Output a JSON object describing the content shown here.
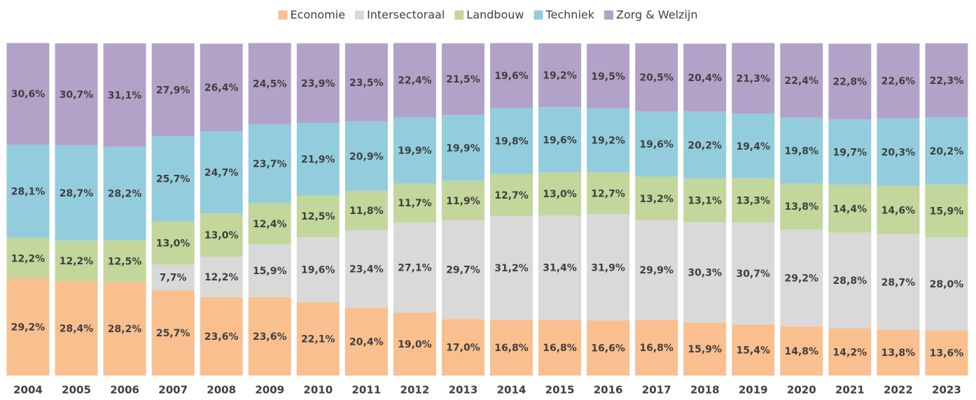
{
  "chart_data": {
    "type": "stacked_bar",
    "categories": [
      "2004",
      "2005",
      "2006",
      "2007",
      "2008",
      "2009",
      "2010",
      "2011",
      "2012",
      "2013",
      "2014",
      "2015",
      "2016",
      "2017",
      "2018",
      "2019",
      "2020",
      "2021",
      "2022",
      "2023"
    ],
    "ylim": [
      0,
      100
    ],
    "legend": "top",
    "series": [
      {
        "name": "Economie",
        "color": "#f9bf8f",
        "values": [
          29.2,
          28.4,
          28.2,
          25.7,
          23.6,
          23.6,
          22.1,
          20.4,
          19.0,
          17.0,
          16.8,
          16.8,
          16.6,
          16.8,
          15.9,
          15.4,
          14.8,
          14.2,
          13.8,
          13.6
        ],
        "value_labels": [
          "29,2%",
          "28,4%",
          "28,2%",
          "25,7%",
          "23,6%",
          "23,6%",
          "22,1%",
          "20,4%",
          "19,0%",
          "17,0%",
          "16,8%",
          "16,8%",
          "16,6%",
          "16,8%",
          "15,9%",
          "15,4%",
          "14,8%",
          "14,2%",
          "13,8%",
          "13,6%"
        ]
      },
      {
        "name": "Intersectoraal",
        "color": "#d9d9d9",
        "values": [
          0,
          0,
          0,
          7.7,
          12.2,
          15.9,
          19.6,
          23.4,
          27.1,
          29.7,
          31.2,
          31.4,
          31.9,
          29.9,
          30.3,
          30.7,
          29.2,
          28.8,
          28.7,
          28.0
        ],
        "value_labels": [
          null,
          null,
          null,
          "7,7%",
          "12,2%",
          "15,9%",
          "19,6%",
          "23,4%",
          "27,1%",
          "29,7%",
          "31,2%",
          "31,4%",
          "31,9%",
          "29,9%",
          "30,3%",
          "30,7%",
          "29,2%",
          "28,8%",
          "28,7%",
          "28,0%"
        ]
      },
      {
        "name": "Landbouw",
        "color": "#c3d69b",
        "values": [
          12.2,
          12.2,
          12.5,
          13.0,
          13.0,
          12.4,
          12.5,
          11.8,
          11.7,
          11.9,
          12.7,
          13.0,
          12.7,
          13.2,
          13.1,
          13.3,
          13.8,
          14.4,
          14.6,
          15.9
        ],
        "value_labels": [
          "12,2%",
          "12,2%",
          "12,5%",
          "13,0%",
          "13,0%",
          "12,4%",
          "12,5%",
          "11,8%",
          "11,7%",
          "11,9%",
          "12,7%",
          "13,0%",
          "12,7%",
          "13,2%",
          "13,1%",
          "13,3%",
          "13,8%",
          "14,4%",
          "14,6%",
          "15,9%"
        ]
      },
      {
        "name": "Techniek",
        "color": "#93cddd",
        "values": [
          28.1,
          28.7,
          28.2,
          25.7,
          24.7,
          23.7,
          21.9,
          20.9,
          19.9,
          19.9,
          19.8,
          19.6,
          19.2,
          19.6,
          20.2,
          19.4,
          19.8,
          19.7,
          20.3,
          20.2
        ],
        "value_labels": [
          "28,1%",
          "28,7%",
          "28,2%",
          "25,7%",
          "24,7%",
          "23,7%",
          "21,9%",
          "20,9%",
          "19,9%",
          "19,9%",
          "19,8%",
          "19,6%",
          "19,2%",
          "19,6%",
          "20,2%",
          "19,4%",
          "19,8%",
          "19,7%",
          "20,3%",
          "20,2%"
        ]
      },
      {
        "name": "Zorg & Welzijn",
        "color": "#b3a2c7",
        "values": [
          30.6,
          30.7,
          31.1,
          27.9,
          26.4,
          24.5,
          23.9,
          23.5,
          22.4,
          21.5,
          19.6,
          19.2,
          19.5,
          20.5,
          20.4,
          21.3,
          22.4,
          22.8,
          22.6,
          22.3
        ],
        "value_labels": [
          "30,6%",
          "30,7%",
          "31,1%",
          "27,9%",
          "26,4%",
          "24,5%",
          "23,9%",
          "23,5%",
          "22,4%",
          "21,5%",
          "19,6%",
          "19,2%",
          "19,5%",
          "20,5%",
          "20,4%",
          "21,3%",
          "22,4%",
          "22,8%",
          "22,6%",
          "22,3%"
        ]
      }
    ]
  }
}
